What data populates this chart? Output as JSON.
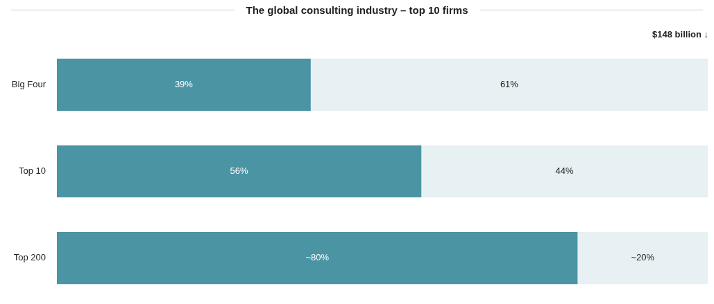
{
  "chart_data": {
    "type": "bar",
    "orientation": "horizontal",
    "stacked": true,
    "title": "The global consulting industry – top 10 firms",
    "annotations": [
      "$148 billion ↓"
    ],
    "categories": [
      "Big Four",
      "Top 10",
      "Top 200"
    ],
    "series": [
      {
        "color": "#4a94a4",
        "values": [
          39,
          56,
          80
        ],
        "value_labels": [
          "39%",
          "56%",
          "~80%"
        ]
      },
      {
        "color": "#e7f0f2",
        "values": [
          61,
          44,
          20
        ],
        "value_labels": [
          "61%",
          "44%",
          "~20%"
        ]
      }
    ],
    "xlim": [
      0,
      100
    ],
    "tick_labels": "y",
    "legend": false
  }
}
